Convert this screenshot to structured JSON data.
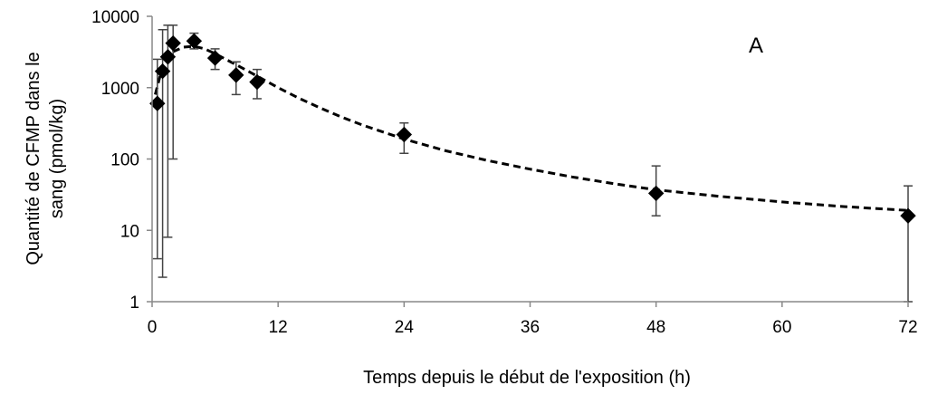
{
  "chart_data": {
    "type": "scatter",
    "panel_label": "A",
    "xlabel": "Temps depuis le début de l'exposition  (h)",
    "ylabel": [
      "Quantité de CFMP dans le",
      "sang (pmol/kg)"
    ],
    "xlim": [
      0,
      72
    ],
    "ylim": [
      1,
      10000
    ],
    "yscale": "log",
    "grid": false,
    "x_ticks": [
      0,
      12,
      24,
      36,
      48,
      60,
      72
    ],
    "y_ticks": [
      1,
      10,
      100,
      1000,
      10000
    ],
    "series": [
      {
        "marker": "diamond",
        "color": "#000000",
        "points": [
          {
            "x": 0.5,
            "y": 600,
            "err_low": 4,
            "err_high": 2500
          },
          {
            "x": 1,
            "y": 1700,
            "err_low": 2.2,
            "err_high": 6500
          },
          {
            "x": 1.5,
            "y": 2700,
            "err_low": 8,
            "err_high": 7500
          },
          {
            "x": 2,
            "y": 4200,
            "err_low": 100,
            "err_high": 7500
          },
          {
            "x": 4,
            "y": 4500,
            "err_low": 3500,
            "err_high": 5800
          },
          {
            "x": 6,
            "y": 2600,
            "err_low": 1800,
            "err_high": 3500
          },
          {
            "x": 8,
            "y": 1500,
            "err_low": 800,
            "err_high": 2300
          },
          {
            "x": 10,
            "y": 1200,
            "err_low": 700,
            "err_high": 1800
          },
          {
            "x": 24,
            "y": 220,
            "err_low": 120,
            "err_high": 320
          },
          {
            "x": 48,
            "y": 33,
            "err_low": 16,
            "err_high": 80
          },
          {
            "x": 72,
            "y": 16,
            "err_low": 1,
            "err_high": 42
          }
        ]
      }
    ],
    "fit_curve": {
      "style": "dashed",
      "color": "#000000",
      "points": [
        [
          0.3,
          800
        ],
        [
          1,
          2000
        ],
        [
          2,
          3200
        ],
        [
          3,
          3700
        ],
        [
          4,
          3800
        ],
        [
          5,
          3500
        ],
        [
          6,
          3000
        ],
        [
          7,
          2500
        ],
        [
          8,
          2100
        ],
        [
          10,
          1450
        ],
        [
          12,
          1000
        ],
        [
          14,
          710
        ],
        [
          16,
          520
        ],
        [
          18,
          390
        ],
        [
          20,
          300
        ],
        [
          24,
          190
        ],
        [
          28,
          130
        ],
        [
          32,
          95
        ],
        [
          36,
          72
        ],
        [
          40,
          56
        ],
        [
          44,
          45
        ],
        [
          48,
          37
        ],
        [
          54,
          30
        ],
        [
          60,
          25
        ],
        [
          66,
          21.5
        ],
        [
          72,
          19
        ]
      ]
    }
  }
}
